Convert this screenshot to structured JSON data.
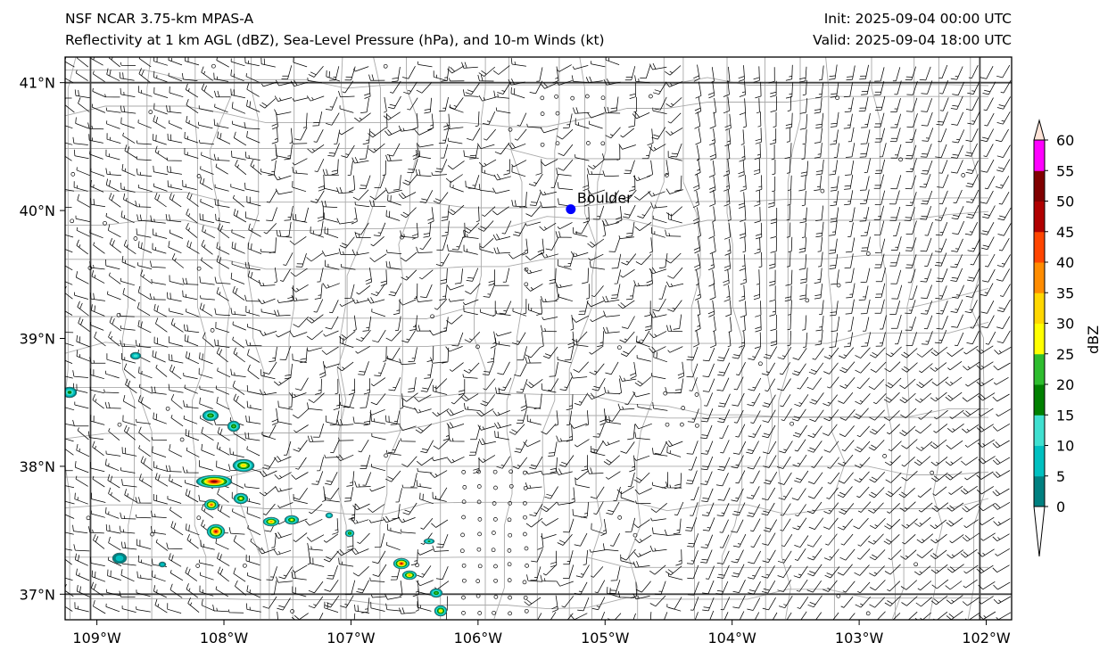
{
  "header": {
    "title_left": "NSF NCAR 3.75-km MPAS-A",
    "subtitle_left": "Reflectivity at 1 km AGL (dBZ), Sea-Level Pressure (hPa), and 10-m Winds (kt)",
    "init": "Init: 2025-09-04 00:00 UTC",
    "valid": "Valid: 2025-09-04 18:00 UTC"
  },
  "map": {
    "lon_range": [
      -109.25,
      -101.8
    ],
    "lat_range": [
      36.8,
      41.2
    ],
    "lon_ticks": [
      "109°W",
      "108°W",
      "107°W",
      "106°W",
      "105°W",
      "104°W",
      "103°W",
      "102°W"
    ],
    "lat_ticks": [
      "41°N",
      "40°N",
      "39°N",
      "38°N",
      "37°N"
    ],
    "city": {
      "name": "Boulder",
      "lon": -105.27,
      "lat": 40.01,
      "color": "#0000ff"
    }
  },
  "colorbar": {
    "label": "dBZ",
    "ticks": [
      "0",
      "5",
      "10",
      "15",
      "20",
      "25",
      "30",
      "35",
      "40",
      "45",
      "50",
      "55",
      "60"
    ],
    "colors": [
      "#008080",
      "#00c0c0",
      "#40e0d0",
      "#008000",
      "#2ebd2e",
      "#ffff00",
      "#ffd700",
      "#ff8c00",
      "#ff4500",
      "#b00000",
      "#800000",
      "#ff00ff",
      "#ffe4d8"
    ]
  },
  "colors": {
    "state_border": "#444444",
    "county_border": "#aaaaaa",
    "barb": "#000000"
  }
}
